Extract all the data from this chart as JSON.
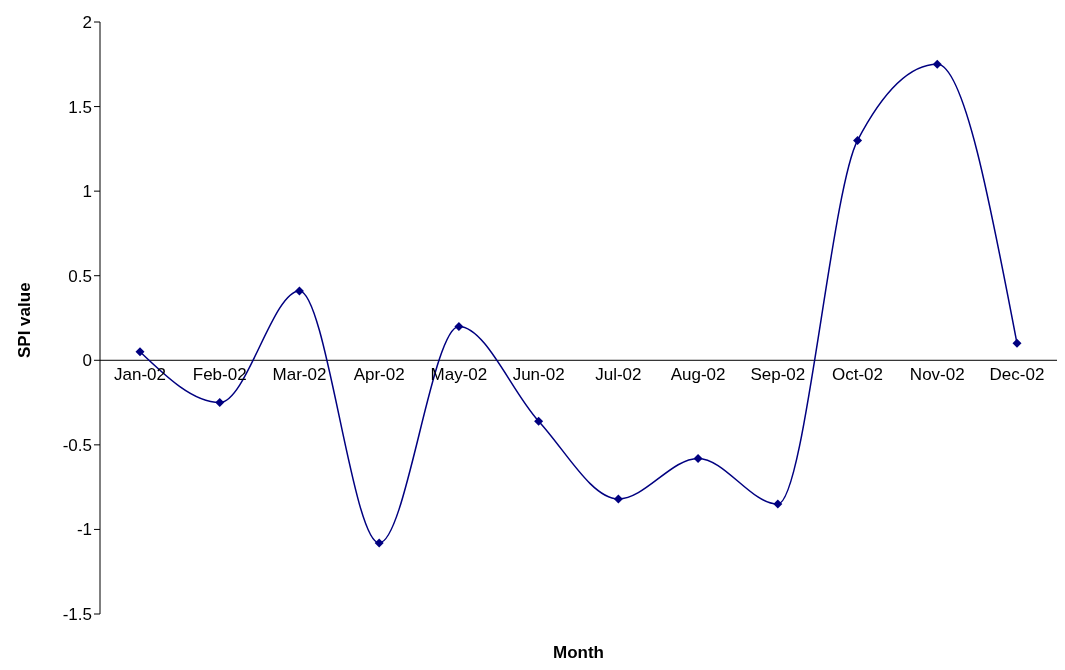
{
  "chart_data": {
    "type": "line",
    "xlabel": "Month",
    "ylabel": "SPI value",
    "categories": [
      "Jan-02",
      "Feb-02",
      "Mar-02",
      "Apr-02",
      "May-02",
      "Jun-02",
      "Jul-02",
      "Aug-02",
      "Sep-02",
      "Oct-02",
      "Nov-02",
      "Dec-02"
    ],
    "series": [
      {
        "color": "#000080",
        "values": [
          0.05,
          -0.25,
          0.41,
          -1.08,
          0.2,
          -0.36,
          -0.82,
          -0.58,
          -0.85,
          1.3,
          1.75,
          0.1
        ]
      }
    ],
    "ylim": [
      -1.5,
      2
    ],
    "yticks": [
      -1.5,
      -1,
      -0.5,
      0,
      0.5,
      1,
      1.5,
      2
    ],
    "grid": false,
    "legend": false,
    "marker": "diamond",
    "line_style": "solid"
  }
}
